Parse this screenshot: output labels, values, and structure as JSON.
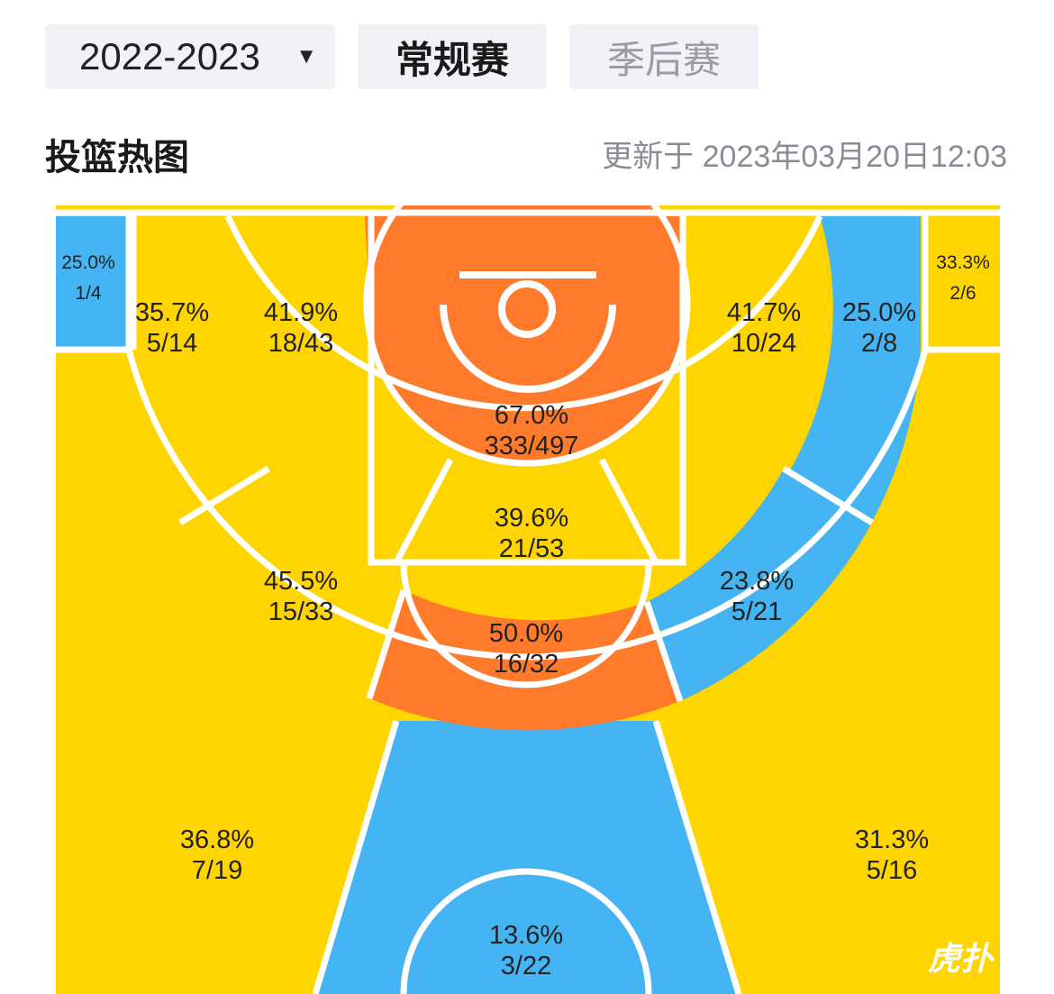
{
  "colors": {
    "hot": "#ff7a2b",
    "avg": "#ffd500",
    "cold": "#45b4f3",
    "tab_bg": "#f1f2f7"
  },
  "header": {
    "season": "2022-2023",
    "tabs": [
      {
        "label": "常规赛",
        "active": true
      },
      {
        "label": "季后赛",
        "active": false
      }
    ]
  },
  "section": {
    "title": "投篮热图",
    "updated": "更新于 2023年03月20日12:03"
  },
  "zones": {
    "left_corner": {
      "pct": "25.0%",
      "made": "1/4"
    },
    "right_corner": {
      "pct": "33.3%",
      "made": "2/6"
    },
    "left_three_top": {
      "pct": "35.7%",
      "made": "5/14"
    },
    "left_mid_top": {
      "pct": "41.9%",
      "made": "18/43"
    },
    "restricted_area": {
      "pct": "67.0%",
      "made": "333/497"
    },
    "right_mid_top": {
      "pct": "41.7%",
      "made": "10/24"
    },
    "right_three_top": {
      "pct": "25.0%",
      "made": "2/8"
    },
    "paint_non_ra": {
      "pct": "39.6%",
      "made": "21/53"
    },
    "left_mid_wing": {
      "pct": "45.5%",
      "made": "15/33"
    },
    "right_mid_wing": {
      "pct": "23.8%",
      "made": "5/21"
    },
    "center_mid": {
      "pct": "50.0%",
      "made": "16/32"
    },
    "left_three_wing": {
      "pct": "36.8%",
      "made": "7/19"
    },
    "right_three_wing": {
      "pct": "31.3%",
      "made": "5/16"
    },
    "top_of_key_three": {
      "pct": "13.6%",
      "made": "3/22"
    }
  },
  "watermark": "虎扑"
}
